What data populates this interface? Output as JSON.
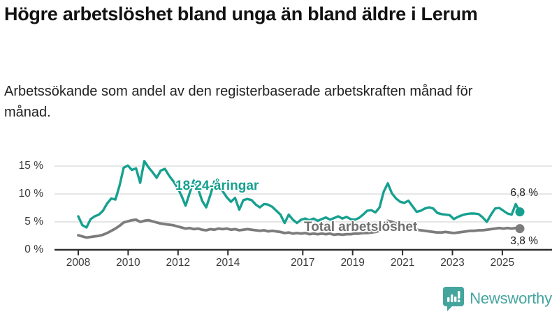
{
  "header": {
    "title": "Högre arbetslöshet bland unga än bland äldre i Lerum",
    "subtitle": "Arbetssökande som andel av den registerbaserade arbetskraften månad för månad."
  },
  "footer": {
    "logo_text": "Newsworthy",
    "logo_icon": "bar-chart-speech-bubble-icon",
    "logo_color": "#44a59e"
  },
  "chart_data": {
    "type": "line",
    "title": "Högre arbetslöshet bland unga än bland äldre i Lerum",
    "subtitle": "Arbetssökande som andel av den registerbaserade arbetskraften månad för månad.",
    "unit": "%",
    "grid": true,
    "x_range": [
      2008,
      2025.75
    ],
    "ylim": [
      0,
      16.5
    ],
    "x_ticks": [
      2008,
      2010,
      2012,
      2014,
      2017,
      2019,
      2021,
      2023,
      2025
    ],
    "y_ticks": [
      {
        "value": 0,
        "label": "0 %"
      },
      {
        "value": 5,
        "label": "5 %"
      },
      {
        "value": 10,
        "label": "10 %"
      },
      {
        "value": 15,
        "label": "15 %"
      }
    ],
    "colors": {
      "young": "#16a08f",
      "total": "#7c7c7c",
      "gridline": "#d8d8d8",
      "axis": "#2e2e2e"
    },
    "series": [
      {
        "name": "18-24-åringar",
        "color": "#16a08f",
        "end_label": "6,8 %",
        "last_value": 6.8,
        "values": [
          6.0,
          4.4,
          4.0,
          5.5,
          6.0,
          6.3,
          7.0,
          8.3,
          9.2,
          9.0,
          11.5,
          14.7,
          15.1,
          14.3,
          14.6,
          12.0,
          15.9,
          14.8,
          13.9,
          12.9,
          14.2,
          14.5,
          13.3,
          12.3,
          11.2,
          9.7,
          7.9,
          10.2,
          12.4,
          11.0,
          8.8,
          7.6,
          9.8,
          12.3,
          12.0,
          10.5,
          9.4,
          8.6,
          9.3,
          7.2,
          8.9,
          9.1,
          8.9,
          8.1,
          7.6,
          8.2,
          8.1,
          7.7,
          7.0,
          6.3,
          4.8,
          6.3,
          5.4,
          4.8,
          5.4,
          5.6,
          5.3,
          5.6,
          5.2,
          5.5,
          5.8,
          5.4,
          5.7,
          6.0,
          5.6,
          5.9,
          5.5,
          5.4,
          5.7,
          6.3,
          7.0,
          7.1,
          6.7,
          7.6,
          10.4,
          11.9,
          10.1,
          9.2,
          8.6,
          8.4,
          8.8,
          7.8,
          6.8,
          7.0,
          7.4,
          7.6,
          7.4,
          6.6,
          6.4,
          6.3,
          6.2,
          5.5,
          5.9,
          6.2,
          6.4,
          6.5,
          6.5,
          6.4,
          5.8,
          5.0,
          6.3,
          7.4,
          7.5,
          7.0,
          6.5,
          6.3,
          8.2,
          6.8
        ]
      },
      {
        "name": "Total arbetslöshet",
        "color": "#7c7c7c",
        "end_label": "3,8 %",
        "last_value": 3.8,
        "values": [
          2.6,
          2.4,
          2.2,
          2.3,
          2.4,
          2.5,
          2.7,
          3.0,
          3.4,
          3.8,
          4.3,
          4.9,
          5.1,
          5.3,
          5.4,
          5.0,
          5.2,
          5.3,
          5.1,
          4.9,
          4.7,
          4.6,
          4.5,
          4.4,
          4.2,
          4.0,
          3.8,
          3.9,
          3.7,
          3.8,
          3.6,
          3.5,
          3.7,
          3.6,
          3.8,
          3.7,
          3.8,
          3.6,
          3.7,
          3.5,
          3.6,
          3.7,
          3.6,
          3.5,
          3.4,
          3.5,
          3.3,
          3.4,
          3.3,
          3.2,
          3.0,
          3.1,
          2.9,
          3.0,
          2.9,
          3.0,
          2.8,
          2.9,
          2.8,
          2.9,
          2.8,
          2.9,
          2.7,
          2.8,
          2.7,
          2.8,
          2.8,
          2.9,
          2.9,
          3.0,
          3.0,
          3.1,
          3.2,
          3.4,
          4.4,
          5.2,
          5.0,
          4.7,
          4.4,
          4.2,
          4.0,
          3.8,
          3.6,
          3.5,
          3.4,
          3.3,
          3.2,
          3.1,
          3.1,
          3.2,
          3.1,
          3.0,
          3.1,
          3.2,
          3.3,
          3.4,
          3.4,
          3.5,
          3.5,
          3.6,
          3.7,
          3.8,
          3.9,
          3.8,
          3.9,
          3.8,
          3.9,
          3.8
        ]
      }
    ],
    "legend_position": "inline-labels"
  }
}
